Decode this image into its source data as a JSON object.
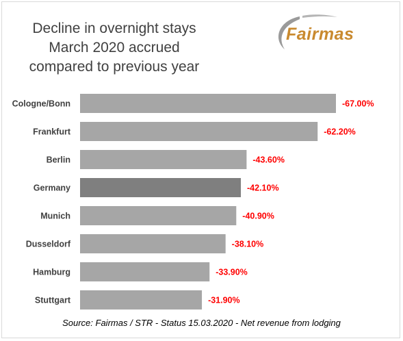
{
  "chart_data": {
    "type": "bar",
    "orientation": "horizontal",
    "title_lines": [
      "Decline in overnight stays",
      "March 2020 accrued",
      "compared to previous year"
    ],
    "categories": [
      "Cologne/Bonn",
      "Frankfurt",
      "Berlin",
      "Germany",
      "Munich",
      "Dusseldorf",
      "Hamburg",
      "Stuttgart"
    ],
    "values": [
      -67.0,
      -62.2,
      -43.6,
      -42.1,
      -40.9,
      -38.1,
      -33.9,
      -31.9
    ],
    "value_labels": [
      "-67.00%",
      "-62.20%",
      "-43.60%",
      "-42.10%",
      "-40.90%",
      "-38.10%",
      "-33.90%",
      "-31.90%"
    ],
    "highlight_category": "Germany",
    "bar_color": "#a6a6a6",
    "highlight_color": "#7f7f7f",
    "label_color": "#ff0000",
    "xlim": [
      0,
      -70
    ],
    "grid": false,
    "legend": "none",
    "source": "Source: Fairmas / STR - Status 15.03.2020 - Net revenue from lodging"
  },
  "logo": {
    "text": "Fairmas",
    "color": "#c98a2f",
    "swoosh_color": "#9a9a9a"
  }
}
